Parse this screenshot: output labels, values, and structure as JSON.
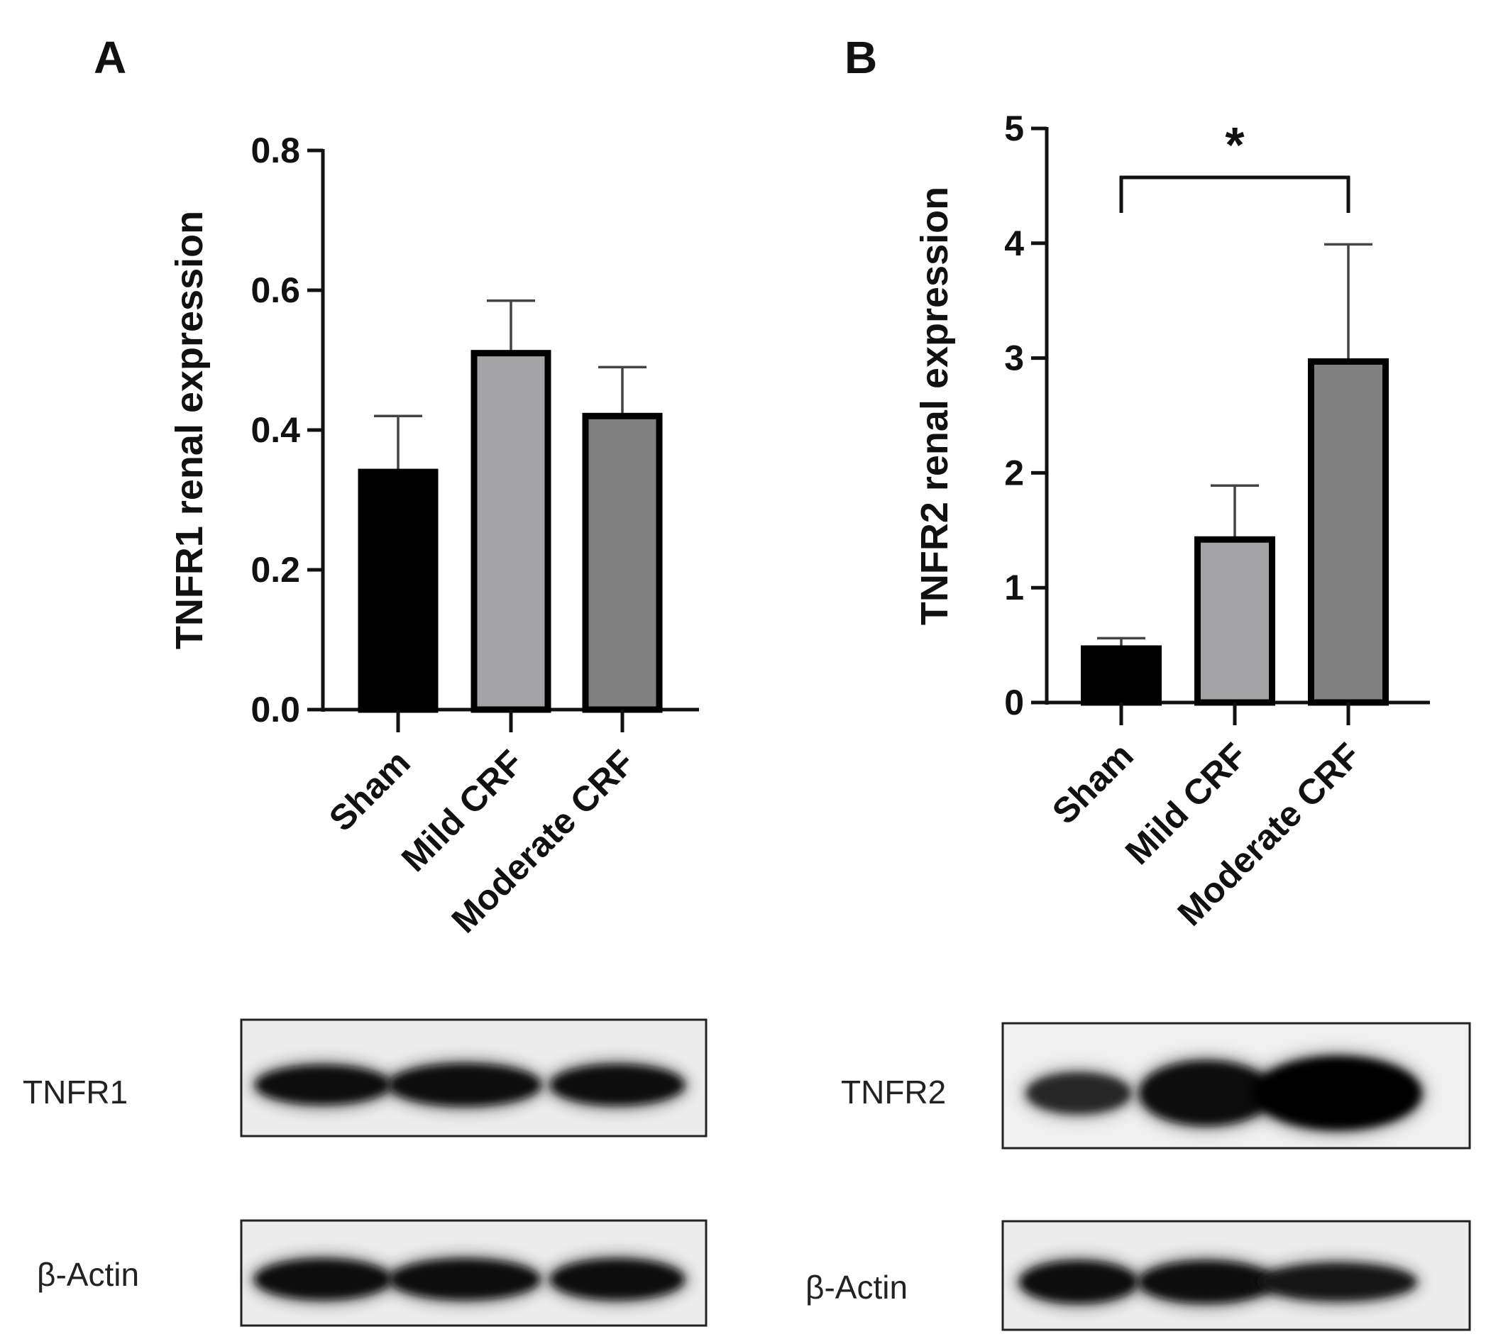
{
  "panels": [
    {
      "letter": "A",
      "ylabel": "TNFR1 renal expression",
      "blots": [
        {
          "label": "TNFR1",
          "band_intensity": [
            0.8,
            0.9,
            0.85
          ]
        },
        {
          "label": "β-Actin",
          "band_intensity": [
            0.85,
            0.85,
            0.85
          ]
        }
      ]
    },
    {
      "letter": "B",
      "ylabel": "TNFR2 renal expression",
      "significance": {
        "label": "*",
        "from": 0,
        "to": 2
      },
      "blots": [
        {
          "label": "TNFR2",
          "band_intensity": [
            0.45,
            0.85,
            1.0
          ]
        },
        {
          "label": "β-Actin",
          "band_intensity": [
            0.9,
            0.9,
            0.75
          ]
        }
      ]
    }
  ],
  "chart_data": [
    {
      "type": "bar",
      "categories": [
        "Sham",
        "Mild CRF",
        "Moderate CRF"
      ],
      "values": [
        0.34,
        0.51,
        0.42
      ],
      "errors": [
        0.08,
        0.075,
        0.07
      ],
      "ylabel": "TNFR1 renal expression",
      "ylim": [
        0,
        0.8
      ],
      "yticks": [
        "0.0",
        "0.2",
        "0.4",
        "0.6",
        "0.8"
      ],
      "bar_colors": [
        "#000000",
        "#a3a3a6",
        "#808080"
      ],
      "grid": false
    },
    {
      "type": "bar",
      "categories": [
        "Sham",
        "Mild CRF",
        "Moderate CRF"
      ],
      "values": [
        0.47,
        1.42,
        2.97
      ],
      "errors": [
        0.09,
        0.47,
        1.02
      ],
      "ylabel": "TNFR2 renal expression",
      "ylim": [
        0,
        5
      ],
      "yticks": [
        "0",
        "1",
        "2",
        "3",
        "4",
        "5"
      ],
      "bar_colors": [
        "#000000",
        "#a3a3a6",
        "#808080"
      ],
      "grid": false
    }
  ]
}
